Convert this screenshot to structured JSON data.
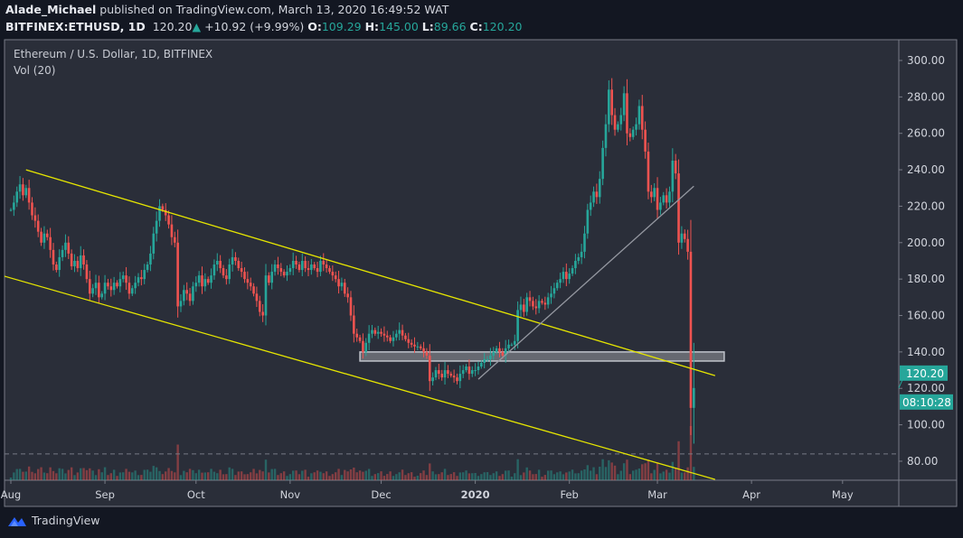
{
  "header": {
    "author": "Alade_Michael",
    "published_text": "published on TradingView.com, March 13, 2020 16:49:52 WAT",
    "symbol": "BITFINEX:ETHUSD, 1D",
    "last": "120.20",
    "change": "+10.92 (+9.99%)",
    "o_label": "O:",
    "o": "109.29",
    "h_label": "H:",
    "h": "145.00",
    "l_label": "L:",
    "l": "89.66",
    "c_label": "C:",
    "c": "120.20"
  },
  "legend": {
    "title": "Ethereum / U.S. Dollar, 1D, BITFINEX",
    "volume": "Vol (20)"
  },
  "price_badge": "120.20",
  "countdown": "08:10:28",
  "footer": {
    "brand": "TradingView"
  },
  "colors": {
    "up": "#26a69a",
    "down": "#ef5350",
    "background": "#2a2e39",
    "channel": "#e6e600",
    "zone": "#b2b5be",
    "trendline": "#9598a1"
  },
  "chart_data": {
    "type": "candlestick",
    "start_date": "2019-08-01",
    "interval": "1D",
    "ylim": [
      66,
      306
    ],
    "y_ticks": [
      "80.00",
      "100.00",
      "120.00",
      "140.00",
      "160.00",
      "180.00",
      "200.00",
      "220.00",
      "240.00",
      "260.00",
      "280.00",
      "300.00"
    ],
    "x_ticks": [
      {
        "label": "Aug",
        "date": "2019-08-01"
      },
      {
        "label": "Sep",
        "date": "2019-09-01"
      },
      {
        "label": "Oct",
        "date": "2019-10-01"
      },
      {
        "label": "Nov",
        "date": "2019-11-01"
      },
      {
        "label": "Dec",
        "date": "2019-12-01"
      },
      {
        "label": "2020",
        "date": "2020-01-01",
        "bold": true
      },
      {
        "label": "Feb",
        "date": "2020-02-01"
      },
      {
        "label": "Mar",
        "date": "2020-03-01"
      },
      {
        "label": "Apr",
        "date": "2020-04-01"
      },
      {
        "label": "May",
        "date": "2020-05-01"
      }
    ],
    "closes": [
      218,
      222,
      228,
      232,
      226,
      230,
      222,
      215,
      212,
      206,
      200,
      205,
      203,
      196,
      188,
      185,
      192,
      196,
      200,
      194,
      187,
      190,
      186,
      193,
      188,
      180,
      172,
      175,
      178,
      170,
      172,
      178,
      176,
      174,
      178,
      176,
      180,
      182,
      178,
      172,
      175,
      178,
      181,
      180,
      185,
      188,
      194,
      205,
      212,
      220,
      218,
      215,
      210,
      203,
      200,
      165,
      168,
      174,
      172,
      168,
      176,
      178,
      182,
      176,
      180,
      178,
      182,
      188,
      190,
      186,
      182,
      180,
      188,
      192,
      190,
      186,
      184,
      180,
      178,
      176,
      172,
      168,
      162,
      160,
      182,
      178,
      184,
      188,
      186,
      184,
      182,
      184,
      186,
      190,
      188,
      185,
      190,
      186,
      185,
      188,
      186,
      184,
      190,
      188,
      186,
      184,
      182,
      180,
      176,
      178,
      172,
      170,
      160,
      150,
      148,
      146,
      140,
      145,
      150,
      152,
      150,
      151,
      150,
      149,
      148,
      146,
      148,
      150,
      152,
      149,
      147,
      145,
      144,
      143,
      143,
      142,
      140,
      138,
      124,
      126,
      130,
      128,
      126,
      130,
      128,
      127,
      126,
      124,
      128,
      130,
      132,
      128,
      130,
      130,
      132,
      134,
      136,
      136,
      138,
      140,
      142,
      140,
      138,
      142,
      144,
      144,
      146,
      163,
      166,
      162,
      170,
      168,
      165,
      164,
      168,
      167,
      166,
      170,
      172,
      175,
      178,
      180,
      184,
      180,
      183,
      186,
      190,
      192,
      195,
      205,
      218,
      222,
      228,
      225,
      235,
      252,
      265,
      284,
      270,
      262,
      265,
      270,
      282,
      260,
      258,
      262,
      265,
      275,
      262,
      250,
      228,
      225,
      230,
      218,
      222,
      226,
      222,
      228,
      245,
      238,
      200,
      205,
      202,
      195,
      109.29,
      120.2
    ],
    "last_bar": {
      "open": 109.29,
      "high": 145.0,
      "low": 89.66,
      "close": 120.2
    },
    "annotations": {
      "channel_upper": [
        {
          "date": "2019-08-06",
          "price": 240
        },
        {
          "date": "2020-03-20",
          "price": 127
        }
      ],
      "channel_lower": [
        {
          "date": "2019-07-29",
          "price": 182
        },
        {
          "date": "2020-03-20",
          "price": 70
        }
      ],
      "zone": {
        "from": "2019-11-24",
        "to": "2020-03-23",
        "low": 135,
        "high": 140
      },
      "trendline": [
        {
          "date": "2020-01-02",
          "price": 125
        },
        {
          "date": "2020-03-13",
          "price": 231
        }
      ],
      "horizontal_dashed": 84
    }
  }
}
